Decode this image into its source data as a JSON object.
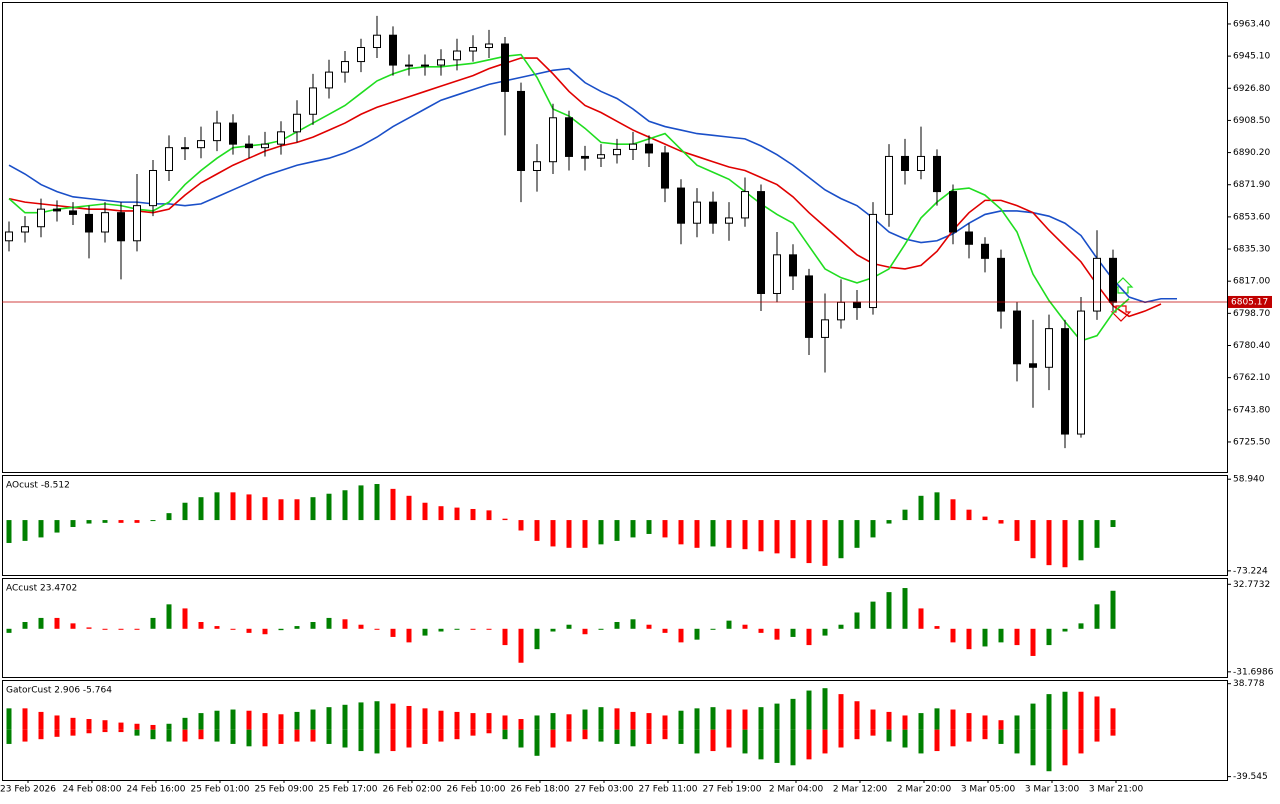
{
  "chart_data": [
    {
      "type": "candlestick",
      "open": [
        6840,
        6845,
        6848,
        6858,
        6857,
        6855,
        6845,
        6856,
        6840,
        6860,
        6880,
        6893,
        6893,
        6897,
        6907,
        6895,
        6893,
        6895,
        6902,
        6912,
        6927,
        6936,
        6942,
        6950,
        6957,
        6940,
        6940,
        6940,
        6943,
        6948,
        6950,
        6952,
        6925,
        6880,
        6885,
        6910,
        6888,
        6887,
        6889,
        6892,
        6895,
        6890,
        6870,
        6850,
        6862,
        6850,
        6853,
        6868,
        6810,
        6832,
        6820,
        6785,
        6795,
        6805,
        6802,
        6855,
        6888,
        6880,
        6888,
        6868,
        6845,
        6838,
        6830,
        6800,
        6770,
        6768,
        6790,
        6730,
        6800,
        6830
      ],
      "high": [
        6851,
        6854,
        6864,
        6863,
        6862,
        6860,
        6862,
        6862,
        6878,
        6886,
        6900,
        6899,
        6905,
        6914,
        6912,
        6900,
        6902,
        6908,
        6920,
        6935,
        6943,
        6948,
        6955,
        6968,
        6962,
        6946,
        6946,
        6949,
        6955,
        6957,
        6960,
        6956,
        6930,
        6895,
        6918,
        6914,
        6894,
        6895,
        6898,
        6902,
        6900,
        6894,
        6875,
        6870,
        6868,
        6862,
        6876,
        6872,
        6845,
        6838,
        6824,
        6810,
        6818,
        6812,
        6862,
        6895,
        6898,
        6905,
        6892,
        6872,
        6850,
        6842,
        6835,
        6805,
        6795,
        6798,
        6795,
        6808,
        6846,
        6835
      ],
      "low": [
        6834,
        6839,
        6842,
        6851,
        6849,
        6830,
        6839,
        6818,
        6834,
        6854,
        6874,
        6886,
        6887,
        6891,
        6889,
        6887,
        6888,
        6889,
        6896,
        6906,
        6921,
        6930,
        6936,
        6944,
        6934,
        6934,
        6934,
        6934,
        6937,
        6942,
        6944,
        6900,
        6862,
        6868,
        6878,
        6880,
        6880,
        6882,
        6884,
        6886,
        6882,
        6862,
        6838,
        6842,
        6844,
        6840,
        6848,
        6800,
        6805,
        6812,
        6775,
        6765,
        6790,
        6795,
        6798,
        6848,
        6872,
        6875,
        6860,
        6838,
        6830,
        6822,
        6790,
        6760,
        6745,
        6755,
        6722,
        6728,
        6795,
        6800
      ],
      "close": [
        6845,
        6848,
        6858,
        6857,
        6855,
        6845,
        6856,
        6840,
        6860,
        6880,
        6893,
        6893,
        6897,
        6907,
        6895,
        6893,
        6895,
        6902,
        6912,
        6927,
        6936,
        6942,
        6950,
        6957,
        6940,
        6940,
        6940,
        6943,
        6948,
        6950,
        6952,
        6925,
        6880,
        6885,
        6910,
        6888,
        6887,
        6889,
        6892,
        6895,
        6890,
        6870,
        6850,
        6862,
        6850,
        6853,
        6868,
        6810,
        6832,
        6820,
        6785,
        6795,
        6805,
        6802,
        6855,
        6888,
        6880,
        6888,
        6868,
        6845,
        6838,
        6830,
        6800,
        6770,
        6768,
        6790,
        6730,
        6800,
        6830,
        6805
      ],
      "lines": [
        {
          "color": "#1a4fc8",
          "values": [
            6883,
            6878,
            6872,
            6868,
            6865,
            6864,
            6863,
            6862,
            6862,
            6861,
            6861,
            6860,
            6861,
            6865,
            6869,
            6873,
            6877,
            6880,
            6883,
            6885,
            6887,
            6890,
            6894,
            6899,
            6905,
            6910,
            6915,
            6920,
            6923,
            6926,
            6929,
            6931,
            6933,
            6935,
            6937,
            6938,
            6930,
            6925,
            6921,
            6915,
            6908,
            6905,
            6903,
            6901,
            6900,
            6899,
            6898,
            6894,
            6889,
            6883,
            6876,
            6869,
            6864,
            6860,
            6853,
            6845,
            6841,
            6839,
            6840,
            6844,
            6850,
            6855,
            6857,
            6857,
            6856,
            6854,
            6850,
            6843,
            6830,
            6818,
            6808,
            6805,
            6807,
            6807
          ]
        },
        {
          "color": "#e00000",
          "values": [
            6864,
            6862,
            6861,
            6860,
            6859,
            6858,
            6858,
            6857,
            6857,
            6856,
            6858,
            6866,
            6873,
            6878,
            6883,
            6887,
            6891,
            6894,
            6896,
            6899,
            6903,
            6907,
            6912,
            6916,
            6919,
            6922,
            6925,
            6928,
            6931,
            6934,
            6938,
            6941,
            6944,
            6944,
            6935,
            6925,
            6917,
            6913,
            6908,
            6903,
            6899,
            6895,
            6891,
            6888,
            6885,
            6882,
            6880,
            6876,
            6872,
            6865,
            6856,
            6848,
            6840,
            6832,
            6827,
            6825,
            6824,
            6826,
            6834,
            6846,
            6856,
            6863,
            6863,
            6860,
            6856,
            6846,
            6837,
            6828,
            6815,
            6803,
            6797,
            6800,
            6804,
            null
          ]
        },
        {
          "color": "#20dd20",
          "values": [
            6864,
            6856,
            6856,
            6858,
            6859,
            6860,
            6861,
            6860,
            6858,
            6857,
            6862,
            6872,
            6880,
            6887,
            6893,
            6894,
            6895,
            6897,
            6902,
            6907,
            6912,
            6917,
            6924,
            6931,
            6935,
            6938,
            6939,
            6939,
            6940,
            6941,
            6943,
            6945,
            6946,
            6933,
            6915,
            6911,
            6904,
            6896,
            6895,
            6895,
            6898,
            6901,
            6892,
            6883,
            6879,
            6875,
            6868,
            6861,
            6855,
            6850,
            6837,
            6824,
            6819,
            6816,
            6819,
            6824,
            6838,
            6853,
            6862,
            6869,
            6870,
            6866,
            6858,
            6845,
            6821,
            6806,
            6794,
            6783,
            6786,
            6799,
            6807,
            null,
            null,
            null
          ]
        }
      ],
      "last_price": 6805.17,
      "ylim": [
        6708.4,
        6975.9
      ],
      "yticks": [
        {
          "value": 6963.4,
          "label": "6963.40"
        },
        {
          "value": 6945.1,
          "label": "6945.10"
        },
        {
          "value": 6926.8,
          "label": "6926.80"
        },
        {
          "value": 6908.5,
          "label": "6908.50"
        },
        {
          "value": 6890.2,
          "label": "6890.20"
        },
        {
          "value": 6871.9,
          "label": "6871.90"
        },
        {
          "value": 6853.6,
          "label": "6853.60"
        },
        {
          "value": 6835.3,
          "label": "6835.30"
        },
        {
          "value": 6817,
          "label": "6817.00"
        },
        {
          "value": 6798.7,
          "label": "6798.70"
        },
        {
          "value": 6780.4,
          "label": "6780.40"
        },
        {
          "value": 6762.1,
          "label": "6762.10"
        },
        {
          "value": 6743.8,
          "label": "6743.80"
        },
        {
          "value": 6725.5,
          "label": "6725.50"
        }
      ],
      "x_labels": [
        "23 Feb 2026",
        "24 Feb 08:00",
        "24 Feb 16:00",
        "25 Feb 01:00",
        "25 Feb 09:00",
        "25 Feb 17:00",
        "26 Feb 02:00",
        "26 Feb 10:00",
        "26 Feb 18:00",
        "27 Feb 03:00",
        "27 Feb 11:00",
        "27 Feb 19:00",
        "2 Mar 04:00",
        "2 Mar 12:00",
        "2 Mar 20:00",
        "3 Mar 05:00",
        "3 Mar 13:00",
        "3 Mar 21:00"
      ]
    },
    {
      "type": "histogram",
      "title": "AOcust -8.512",
      "up_color": "#008000",
      "down_color": "#ff0000",
      "series": [
        {
          "values": [
            -33,
            -30,
            -25,
            -18,
            -10,
            -5,
            -4,
            -4,
            -4,
            0,
            10,
            25,
            33,
            40,
            40,
            37,
            33,
            30,
            30,
            33,
            38,
            43,
            50,
            52,
            45,
            35,
            25,
            20,
            18,
            16,
            14,
            2,
            -15,
            -30,
            -38,
            -40,
            -40,
            -35,
            -30,
            -25,
            -20,
            -25,
            -35,
            -40,
            -38,
            -40,
            -42,
            -45,
            -48,
            -55,
            -62,
            -66,
            -55,
            -40,
            -25,
            -5,
            15,
            35,
            40,
            30,
            15,
            5,
            -5,
            -30,
            -55,
            -65,
            -68,
            -58,
            -40,
            -10
          ]
        }
      ],
      "ylim": [
        -79.2,
        65.0
      ],
      "yticks": [
        {
          "value": 58.94,
          "label": "58.940"
        },
        {
          "value": -73.224,
          "label": "-73.224"
        }
      ]
    },
    {
      "type": "histogram",
      "title": "ACcust 23.4702",
      "up_color": "#008000",
      "down_color": "#ff0000",
      "series": [
        {
          "values": [
            -3,
            5,
            8,
            8,
            4,
            1,
            0,
            0,
            0,
            8,
            18,
            15,
            5,
            2,
            0,
            -3,
            -4,
            -1,
            2,
            5,
            8,
            7,
            3,
            0,
            -6,
            -10,
            -5,
            -2,
            0,
            0,
            0,
            -12,
            -25,
            -15,
            -2,
            3,
            -4,
            0,
            5,
            7,
            3,
            -3,
            -10,
            -8,
            0,
            6,
            3,
            -3,
            -8,
            -6,
            -12,
            -5,
            3,
            12,
            20,
            27,
            30,
            15,
            2,
            -10,
            -15,
            -13,
            -10,
            -12,
            -20,
            -12,
            -2,
            4,
            18,
            28
          ]
        }
      ],
      "ylim": [
        -35.5,
        37.4
      ],
      "yticks": [
        32.7732,
        -31.6986
      ]
    },
    {
      "type": "gator",
      "title": "GatorCust 2.906 -5.764",
      "up_color": "#008000",
      "down_color": "#ff0000",
      "series": [
        {
          "values": [
            18,
            18,
            15,
            12,
            10,
            9,
            8,
            6,
            5,
            4,
            5,
            10,
            14,
            16,
            17,
            16,
            14,
            13,
            15,
            17,
            19,
            21,
            23,
            24,
            22,
            20,
            18,
            16,
            15,
            14,
            14,
            12,
            9,
            12,
            14,
            13,
            17,
            19,
            18,
            15,
            14,
            12,
            16,
            18,
            19,
            17,
            17,
            19,
            22,
            26,
            33,
            35,
            30,
            24,
            17,
            15,
            12,
            14,
            18,
            17,
            14,
            12,
            8,
            12,
            22,
            30,
            32,
            32,
            28,
            18
          ]
        },
        {
          "values": [
            -12,
            -10,
            -8,
            -6,
            -5,
            -3,
            -2,
            -2,
            -5,
            -8,
            -10,
            -10,
            -8,
            -10,
            -12,
            -14,
            -14,
            -12,
            -10,
            -10,
            -12,
            -15,
            -18,
            -20,
            -18,
            -15,
            -12,
            -10,
            -8,
            -5,
            -3,
            -8,
            -15,
            -22,
            -15,
            -10,
            -8,
            -10,
            -12,
            -14,
            -12,
            -8,
            -12,
            -20,
            -18,
            -15,
            -20,
            -25,
            -28,
            -30,
            -25,
            -20,
            -15,
            -8,
            -5,
            -10,
            -15,
            -20,
            -18,
            -14,
            -10,
            -8,
            -12,
            -20,
            -30,
            -35,
            -30,
            -20,
            -10,
            -5
          ]
        }
      ],
      "ylim": [
        -42.4,
        41.9
      ],
      "yticks": [
        38.778,
        -39.545
      ]
    }
  ]
}
